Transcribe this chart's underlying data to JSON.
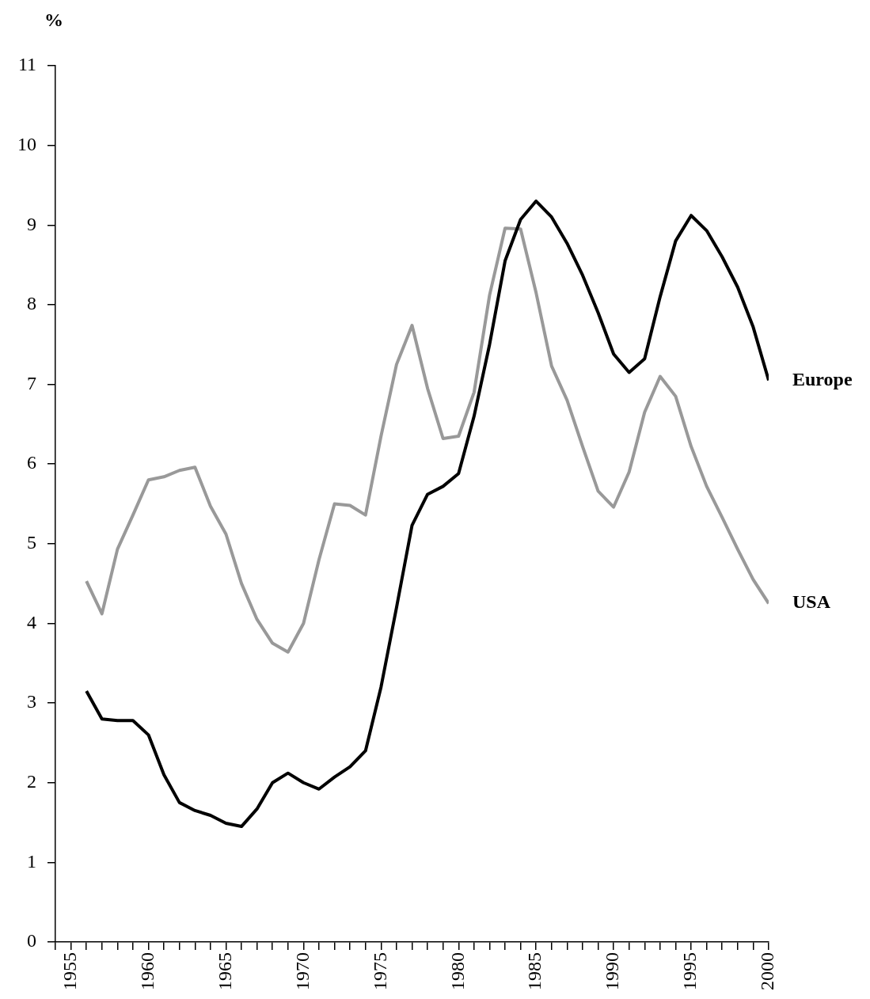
{
  "chart_data": {
    "type": "line",
    "ylabel": "%",
    "x": [
      1956,
      1957,
      1958,
      1959,
      1960,
      1961,
      1962,
      1963,
      1964,
      1965,
      1966,
      1967,
      1968,
      1969,
      1970,
      1971,
      1972,
      1973,
      1974,
      1975,
      1976,
      1977,
      1978,
      1979,
      1980,
      1981,
      1982,
      1983,
      1984,
      1985,
      1986,
      1987,
      1988,
      1989,
      1990,
      1991,
      1992,
      1993,
      1994,
      1995,
      1996,
      1997,
      1998,
      1999,
      2000
    ],
    "series": [
      {
        "name": "Europe",
        "color": "#000000",
        "values": [
          3.15,
          2.8,
          2.78,
          2.78,
          2.6,
          2.1,
          1.75,
          1.65,
          1.59,
          1.49,
          1.45,
          1.67,
          2.0,
          2.12,
          2.0,
          1.92,
          2.07,
          2.2,
          2.4,
          3.2,
          4.2,
          5.23,
          5.62,
          5.72,
          5.88,
          6.6,
          7.5,
          8.55,
          9.07,
          9.3,
          9.1,
          8.77,
          8.37,
          7.9,
          7.38,
          7.15,
          7.32,
          8.1,
          8.8,
          9.12,
          8.93,
          8.6,
          8.22,
          7.72,
          7.05
        ]
      },
      {
        "name": "USA",
        "color": "#999999",
        "values": [
          4.53,
          4.12,
          4.93,
          5.36,
          5.8,
          5.84,
          5.92,
          5.96,
          5.47,
          5.12,
          4.5,
          4.05,
          3.75,
          3.64,
          4.0,
          4.8,
          5.5,
          5.48,
          5.36,
          6.35,
          7.25,
          7.74,
          6.95,
          6.32,
          6.35,
          6.9,
          8.12,
          8.96,
          8.95,
          8.15,
          7.23,
          6.8,
          6.22,
          5.66,
          5.46,
          5.9,
          6.65,
          7.1,
          6.85,
          6.22,
          5.72,
          5.33,
          4.93,
          4.55,
          4.25
        ]
      }
    ],
    "xlim": [
      1954,
      2000
    ],
    "xticks": [
      {
        "value": 1954,
        "label": null
      },
      1955,
      {
        "value": 1956,
        "label": null
      },
      {
        "value": 1957,
        "label": null
      },
      {
        "value": 1958,
        "label": null
      },
      {
        "value": 1959,
        "label": null
      },
      1960,
      {
        "value": 1961,
        "label": null
      },
      {
        "value": 1962,
        "label": null
      },
      {
        "value": 1963,
        "label": null
      },
      {
        "value": 1964,
        "label": null
      },
      1965,
      {
        "value": 1966,
        "label": null
      },
      {
        "value": 1967,
        "label": null
      },
      {
        "value": 1968,
        "label": null
      },
      {
        "value": 1969,
        "label": null
      },
      1970,
      {
        "value": 1971,
        "label": null
      },
      {
        "value": 1972,
        "label": null
      },
      {
        "value": 1973,
        "label": null
      },
      {
        "value": 1974,
        "label": null
      },
      1975,
      {
        "value": 1976,
        "label": null
      },
      {
        "value": 1977,
        "label": null
      },
      {
        "value": 1978,
        "label": null
      },
      {
        "value": 1979,
        "label": null
      },
      1980,
      {
        "value": 1981,
        "label": null
      },
      {
        "value": 1982,
        "label": null
      },
      {
        "value": 1983,
        "label": null
      },
      {
        "value": 1984,
        "label": null
      },
      1985,
      {
        "value": 1986,
        "label": null
      },
      {
        "value": 1987,
        "label": null
      },
      {
        "value": 1988,
        "label": null
      },
      {
        "value": 1989,
        "label": null
      },
      1990,
      {
        "value": 1991,
        "label": null
      },
      {
        "value": 1992,
        "label": null
      },
      {
        "value": 1993,
        "label": null
      },
      {
        "value": 1994,
        "label": null
      },
      1995,
      {
        "value": 1996,
        "label": null
      },
      {
        "value": 1997,
        "label": null
      },
      {
        "value": 1998,
        "label": null
      },
      {
        "value": 1999,
        "label": null
      },
      2000
    ],
    "ylim": [
      0,
      11
    ],
    "yticks": [
      0,
      1,
      2,
      3,
      4,
      5,
      6,
      7,
      8,
      9,
      10,
      11
    ],
    "grid": false,
    "legend": false
  }
}
